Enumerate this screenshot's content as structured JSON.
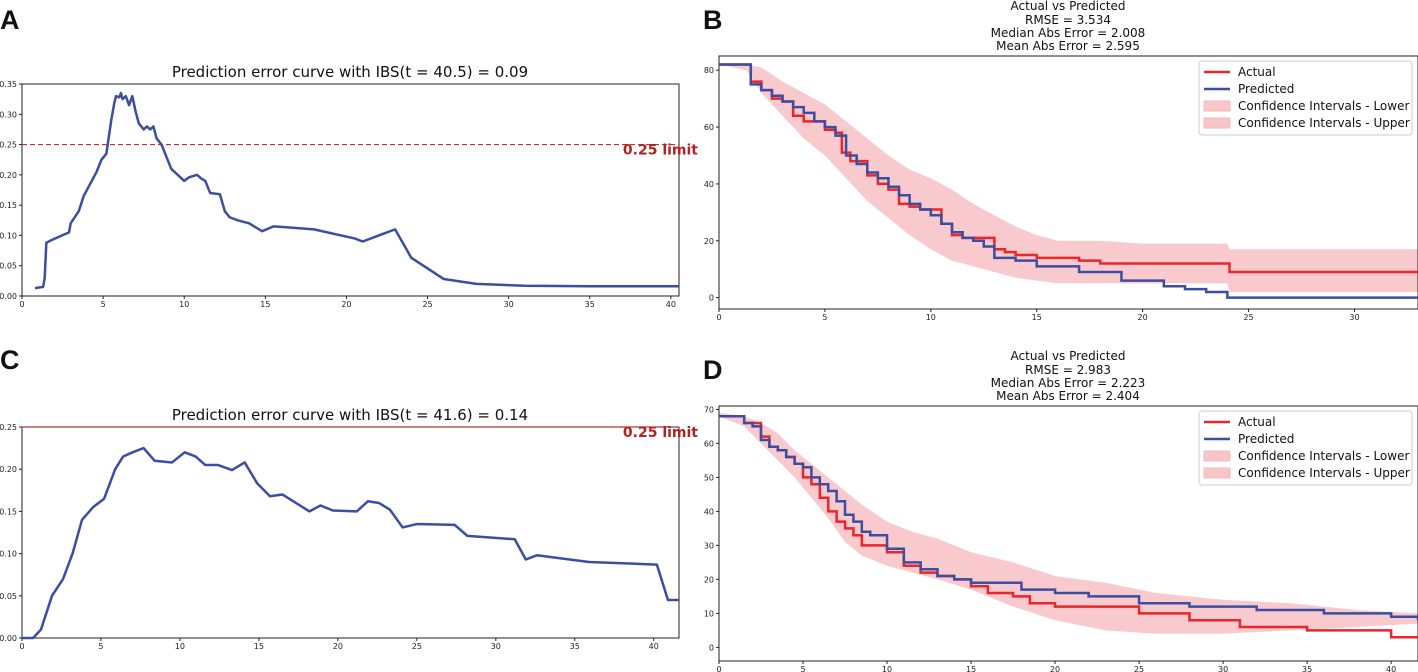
{
  "colors": {
    "curve": "#3b4ea1",
    "actual": "#e8262b",
    "predicted": "#3b4ea1",
    "ci_fill": "#f7b8bc",
    "ci_fill_legend": "#f7c6c9",
    "limit": "#d62a2a",
    "limit_text": "#b22222"
  },
  "chart_data": [
    {
      "panel": "A",
      "type": "line",
      "title": "Prediction error curve with IBS(t = 40.5) = 0.09",
      "xlim": [
        0,
        40.5
      ],
      "ylim": [
        0,
        0.35
      ],
      "xticks": [
        0,
        5,
        10,
        15,
        20,
        25,
        30,
        35,
        40
      ],
      "yticks": [
        0.0,
        0.05,
        0.1,
        0.15,
        0.2,
        0.25,
        0.3,
        0.35
      ],
      "limit": {
        "value": 0.25,
        "label": "0.25 limit"
      },
      "series": [
        {
          "name": "prediction error",
          "x": [
            0.8,
            1.3,
            1.4,
            1.5,
            1.8,
            2.3,
            2.9,
            3.0,
            3.5,
            3.8,
            4.2,
            4.6,
            4.9,
            5.2,
            5.5,
            5.7,
            5.8,
            6.0,
            6.1,
            6.2,
            6.4,
            6.6,
            6.8,
            7.0,
            7.2,
            7.5,
            7.7,
            7.9,
            8.1,
            8.3,
            8.6,
            8.9,
            9.2,
            9.6,
            10.0,
            10.3,
            10.8,
            11.0,
            11.3,
            11.6,
            12.2,
            12.5,
            12.8,
            13.3,
            14.0,
            14.8,
            15.5,
            16.5,
            18.0,
            20.5,
            21.0,
            23.0,
            24.0,
            26.0,
            28.0,
            31.0,
            35.0,
            40.5
          ],
          "y": [
            0.013,
            0.015,
            0.03,
            0.088,
            0.092,
            0.098,
            0.105,
            0.12,
            0.14,
            0.165,
            0.185,
            0.205,
            0.225,
            0.235,
            0.29,
            0.32,
            0.33,
            0.328,
            0.335,
            0.325,
            0.33,
            0.315,
            0.33,
            0.305,
            0.285,
            0.275,
            0.28,
            0.275,
            0.28,
            0.26,
            0.25,
            0.23,
            0.21,
            0.2,
            0.19,
            0.196,
            0.2,
            0.195,
            0.19,
            0.17,
            0.168,
            0.14,
            0.13,
            0.125,
            0.12,
            0.107,
            0.115,
            0.113,
            0.11,
            0.095,
            0.09,
            0.11,
            0.063,
            0.028,
            0.02,
            0.017,
            0.016,
            0.016
          ]
        }
      ]
    },
    {
      "panel": "B",
      "type": "line",
      "title": "Actual vs Predicted",
      "subtitles": [
        "RMSE = 3.534",
        "Median Abs Error = 2.008",
        "Mean Abs Error = 2.595"
      ],
      "xlim": [
        0,
        33
      ],
      "ylim": [
        -4,
        85
      ],
      "xticks": [
        0,
        5,
        10,
        15,
        20,
        25,
        30
      ],
      "yticks": [
        0,
        20,
        40,
        60,
        80
      ],
      "legend": [
        "Actual",
        "Predicted",
        "Confidence Intervals - Lower",
        "Confidence Intervals - Upper"
      ],
      "series": [
        {
          "name": "Actual",
          "x": [
            0,
            1.3,
            1.5,
            2.0,
            2.5,
            3.0,
            3.5,
            4.0,
            4.5,
            5.0,
            5.5,
            5.8,
            6.2,
            6.6,
            7.0,
            7.5,
            8.0,
            8.5,
            9.0,
            9.5,
            10.0,
            10.5,
            11.0,
            11.5,
            12.0,
            13.0,
            13.5,
            14.0,
            15.0,
            17.0,
            18.0,
            20.0,
            22.0,
            24.0,
            24.1,
            28.0,
            33.0
          ],
          "y": [
            82,
            82,
            76,
            73,
            70,
            69,
            64,
            62,
            62,
            59,
            58,
            51,
            48,
            48,
            43,
            40,
            38,
            33,
            32,
            31,
            31,
            26,
            22,
            21,
            21,
            17,
            16,
            15,
            14,
            13,
            12,
            12,
            12,
            12,
            9,
            9,
            9
          ]
        },
        {
          "name": "Predicted",
          "x": [
            0,
            1.3,
            1.5,
            2.0,
            2.5,
            3.0,
            3.5,
            4.0,
            4.5,
            5.0,
            5.5,
            6.0,
            6.5,
            7.0,
            7.5,
            8.0,
            8.5,
            9.0,
            9.5,
            10.0,
            10.5,
            11.0,
            11.5,
            12.0,
            12.5,
            13.0,
            14.0,
            15.0,
            17.0,
            19.0,
            21.0,
            22.0,
            23.0,
            24.0,
            28.0,
            33.0
          ],
          "y": [
            82,
            82,
            75,
            73,
            71,
            69,
            67,
            65,
            62,
            60,
            57,
            50,
            47,
            44,
            42,
            39,
            36,
            33,
            31,
            29,
            26,
            23,
            21,
            20,
            18,
            14,
            13,
            11,
            9,
            6,
            4,
            3,
            2,
            0,
            0,
            0
          ]
        },
        {
          "name": "CI band",
          "x": [
            0,
            1.3,
            2.0,
            3.0,
            4.0,
            5.0,
            6.0,
            7.0,
            8.0,
            9.0,
            10.0,
            11.0,
            12.0,
            13.0,
            14.0,
            15.0,
            16.0,
            18.0,
            20.0,
            22.0,
            24.0,
            24.1,
            28.0,
            33.0
          ],
          "lower": [
            82,
            80,
            72,
            64,
            56,
            50,
            42,
            34,
            28,
            22,
            17,
            13,
            11,
            9,
            7,
            6,
            5,
            5,
            5,
            5,
            5,
            2,
            2,
            2
          ],
          "upper": [
            82,
            82,
            81,
            76,
            72,
            68,
            62,
            56,
            50,
            45,
            42,
            38,
            33,
            29,
            25,
            22,
            20,
            20,
            19,
            19,
            19,
            17,
            17,
            17
          ]
        }
      ]
    },
    {
      "panel": "C",
      "type": "line",
      "title": "Prediction error curve with IBS(t = 41.6) = 0.14",
      "xlim": [
        0,
        41.6
      ],
      "ylim": [
        0,
        0.25
      ],
      "xticks": [
        0,
        5,
        10,
        15,
        20,
        25,
        30,
        35,
        40
      ],
      "yticks": [
        0.0,
        0.05,
        0.1,
        0.15,
        0.2,
        0.25
      ],
      "limit": {
        "value": 0.25,
        "label": "0.25 limit"
      },
      "series": [
        {
          "name": "prediction error",
          "x": [
            0,
            0.7,
            1.2,
            1.9,
            2.6,
            3.2,
            3.8,
            4.5,
            5.2,
            5.9,
            6.4,
            7.0,
            7.7,
            8.4,
            9.5,
            10.3,
            11.0,
            11.6,
            12.4,
            13.3,
            14.1,
            14.9,
            15.7,
            16.5,
            18.2,
            18.9,
            19.7,
            21.2,
            21.9,
            22.6,
            23.3,
            24.1,
            25.0,
            27.4,
            28.2,
            31.2,
            31.9,
            32.6,
            35.9,
            40.2,
            40.9,
            41.6
          ],
          "y": [
            0,
            0,
            0.01,
            0.05,
            0.07,
            0.1,
            0.14,
            0.155,
            0.165,
            0.2,
            0.215,
            0.22,
            0.225,
            0.21,
            0.208,
            0.22,
            0.215,
            0.205,
            0.205,
            0.199,
            0.208,
            0.183,
            0.168,
            0.17,
            0.15,
            0.157,
            0.151,
            0.15,
            0.162,
            0.16,
            0.152,
            0.131,
            0.135,
            0.134,
            0.121,
            0.117,
            0.093,
            0.098,
            0.09,
            0.087,
            0.045,
            0.045
          ]
        }
      ]
    },
    {
      "panel": "D",
      "type": "line",
      "title": "Actual vs Predicted",
      "subtitles": [
        "RMSE = 2.983",
        "Median Abs Error = 2.223",
        "Mean Abs Error = 2.404"
      ],
      "xlim": [
        0,
        41.6
      ],
      "ylim": [
        -4,
        71
      ],
      "xticks": [
        0,
        5,
        10,
        15,
        20,
        25,
        30,
        35,
        40
      ],
      "yticks": [
        0,
        10,
        20,
        30,
        40,
        50,
        60,
        70
      ],
      "legend": [
        "Actual",
        "Predicted",
        "Confidence Intervals - Lower",
        "Confidence Intervals - Upper"
      ],
      "series": [
        {
          "name": "Actual",
          "x": [
            0,
            1.5,
            2.5,
            3.0,
            3.5,
            4.0,
            4.5,
            5.0,
            5.5,
            6.0,
            6.5,
            7.0,
            7.5,
            8.0,
            8.5,
            9.0,
            10.0,
            11.0,
            12.0,
            13.0,
            14.0,
            15.0,
            16.0,
            17.5,
            18.5,
            20.0,
            22.0,
            24.0,
            25.0,
            28.0,
            31.0,
            35.0,
            40.0,
            41.6
          ],
          "y": [
            68,
            66,
            62,
            59,
            58,
            56,
            54,
            50,
            48,
            44,
            40,
            37,
            35,
            33,
            30,
            30,
            28,
            24,
            22,
            21,
            20,
            18,
            16,
            15,
            13,
            12,
            12,
            12,
            10,
            8,
            6,
            5,
            3,
            3
          ]
        },
        {
          "name": "Predicted",
          "x": [
            0,
            1.5,
            2.0,
            2.5,
            3.0,
            3.5,
            4.0,
            4.5,
            5.0,
            5.5,
            6.0,
            6.5,
            7.0,
            7.5,
            8.0,
            8.5,
            9.0,
            10.0,
            11.0,
            12.0,
            13.0,
            14.0,
            15.0,
            16.0,
            18.0,
            20.0,
            22.0,
            25.0,
            28.0,
            32.0,
            36.0,
            40.0,
            41.6
          ],
          "y": [
            68,
            66,
            65,
            61,
            59,
            58,
            56,
            54,
            53,
            50,
            48,
            46,
            43,
            39,
            37,
            34,
            33,
            29,
            25,
            23,
            21,
            20,
            19,
            19,
            17,
            16,
            15,
            13,
            12,
            11,
            10,
            9,
            8
          ]
        },
        {
          "name": "CI band",
          "x": [
            0,
            1.5,
            2.5,
            3.5,
            4.5,
            5.5,
            6.5,
            7.5,
            8.5,
            10.0,
            11.5,
            13.0,
            15.0,
            17.5,
            20.0,
            23.0,
            26.0,
            30.0,
            34.0,
            38.0,
            41.6
          ],
          "lower": [
            68,
            65,
            60,
            55,
            50,
            44,
            38,
            31,
            27,
            24,
            22,
            20,
            17,
            12,
            8,
            5,
            4,
            4,
            5,
            6,
            7
          ],
          "upper": [
            69,
            68,
            66,
            63,
            58,
            54,
            50,
            46,
            42,
            37,
            34,
            32,
            28,
            25,
            21,
            19,
            16,
            14,
            13,
            11,
            10
          ]
        }
      ]
    }
  ]
}
